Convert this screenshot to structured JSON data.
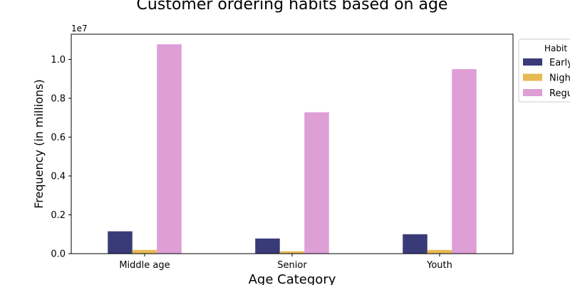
{
  "chart_data": {
    "type": "bar",
    "title": "Customer ordering habits based on age",
    "xlabel": "Age Category",
    "ylabel": "Frequency (in millions)",
    "offset_label": "1e7",
    "categories": [
      "Middle age",
      "Senior",
      "Youth"
    ],
    "ylim": [
      0,
      11300000
    ],
    "yticks": [
      "0.0",
      "0.2",
      "0.4",
      "0.6",
      "0.8",
      "1.0"
    ],
    "yticks_values": [
      0,
      2000000,
      4000000,
      6000000,
      8000000,
      10000000
    ],
    "legend_title": "Habit",
    "legend_placement": "outside-top-right",
    "grid": false,
    "series": [
      {
        "name": "Early",
        "color": "#393b79",
        "values": [
          1150000,
          780000,
          1000000
        ]
      },
      {
        "name": "Nigh",
        "color": "#e7ba52",
        "values": [
          190000,
          120000,
          190000
        ]
      },
      {
        "name": "Regu",
        "color": "#de9ed6",
        "values": [
          10780000,
          7280000,
          9500000
        ]
      }
    ]
  }
}
